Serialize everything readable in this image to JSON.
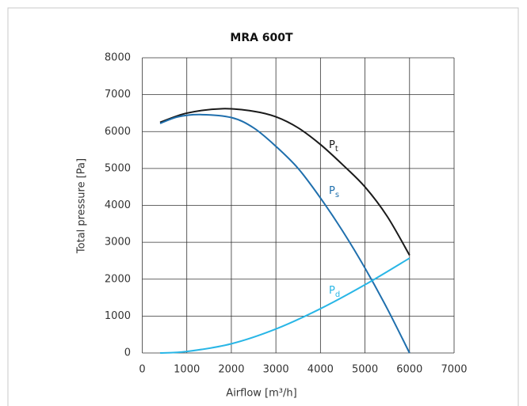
{
  "chart_data": {
    "type": "line",
    "title": "MRA 600T",
    "x_label": "Airflow [m³/h]",
    "y_label": "Total pressure [Pa]",
    "xlim": [
      0,
      7000
    ],
    "xticks": [
      0,
      1000,
      2000,
      3000,
      4000,
      5000,
      6000,
      7000
    ],
    "ylim": [
      0,
      8000
    ],
    "yticks": [
      0,
      1000,
      2000,
      3000,
      4000,
      5000,
      6000,
      7000,
      8000
    ],
    "grid": true,
    "series": [
      {
        "name": "P",
        "subscript": "t",
        "color": "#1a1a1a",
        "x": [
          400,
          1000,
          1800,
          2500,
          3000,
          3500,
          4000,
          4500,
          5000,
          5500,
          6000
        ],
        "values": [
          6250,
          6500,
          6620,
          6550,
          6400,
          6100,
          5650,
          5100,
          4500,
          3700,
          2650
        ]
      },
      {
        "name": "P",
        "subscript": "s",
        "color": "#1f6fad",
        "x": [
          400,
          800,
          1300,
          2000,
          2500,
          3000,
          3500,
          4000,
          4500,
          5000,
          5500,
          6000
        ],
        "values": [
          6220,
          6400,
          6460,
          6380,
          6100,
          5600,
          5000,
          4200,
          3300,
          2300,
          1200,
          0
        ]
      },
      {
        "name": "P",
        "subscript": "d",
        "color": "#29b6e6",
        "x": [
          400,
          1000,
          2000,
          3000,
          4000,
          5000,
          6000
        ],
        "values": [
          0,
          40,
          250,
          650,
          1200,
          1850,
          2570
        ]
      }
    ]
  }
}
